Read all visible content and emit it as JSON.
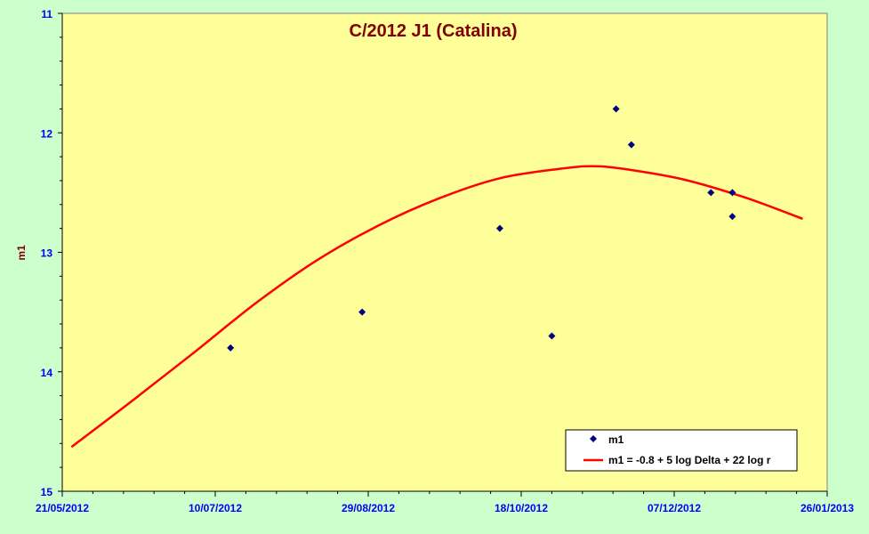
{
  "chart_data": {
    "type": "scatter",
    "title": "C/2012 J1 (Catalina)",
    "xlabel": "",
    "ylabel": "m1",
    "x_ticks": [
      "21/05/2012",
      "10/07/2012",
      "29/08/2012",
      "18/10/2012",
      "07/12/2012",
      "26/01/2013"
    ],
    "x_range": [
      "2012-05-21",
      "2013-01-26"
    ],
    "y_ticks": [
      "11",
      "12",
      "13",
      "14",
      "15"
    ],
    "ylim": [
      11,
      15
    ],
    "y_inverted": true,
    "grid": false,
    "legend_position": "bottom-right",
    "series": [
      {
        "name": "m1",
        "kind": "scatter",
        "color": "#000080",
        "points": [
          {
            "x": "2012-07-15",
            "y": 13.8
          },
          {
            "x": "2012-08-27",
            "y": 13.5
          },
          {
            "x": "2012-10-11",
            "y": 12.8
          },
          {
            "x": "2012-10-28",
            "y": 13.7
          },
          {
            "x": "2012-11-18",
            "y": 11.8
          },
          {
            "x": "2012-11-23",
            "y": 12.1
          },
          {
            "x": "2012-12-19",
            "y": 12.5
          },
          {
            "x": "2012-12-26",
            "y": 12.5
          },
          {
            "x": "2012-12-26",
            "y": 12.7
          }
        ]
      },
      {
        "name": "m1 = -0.8 + 5 log Delta + 22 log r",
        "kind": "line",
        "color": "#ff0000",
        "points": [
          {
            "x": "2012-05-24",
            "y": 14.63
          },
          {
            "x": "2012-06-13",
            "y": 14.24
          },
          {
            "x": "2012-07-03",
            "y": 13.84
          },
          {
            "x": "2012-07-23",
            "y": 13.43
          },
          {
            "x": "2012-08-12",
            "y": 13.07
          },
          {
            "x": "2012-09-01",
            "y": 12.78
          },
          {
            "x": "2012-09-21",
            "y": 12.55
          },
          {
            "x": "2012-10-11",
            "y": 12.38
          },
          {
            "x": "2012-10-31",
            "y": 12.3
          },
          {
            "x": "2012-11-10",
            "y": 12.28
          },
          {
            "x": "2012-11-20",
            "y": 12.3
          },
          {
            "x": "2012-12-10",
            "y": 12.39
          },
          {
            "x": "2012-12-30",
            "y": 12.54
          },
          {
            "x": "2013-01-18",
            "y": 12.72
          }
        ]
      }
    ]
  }
}
